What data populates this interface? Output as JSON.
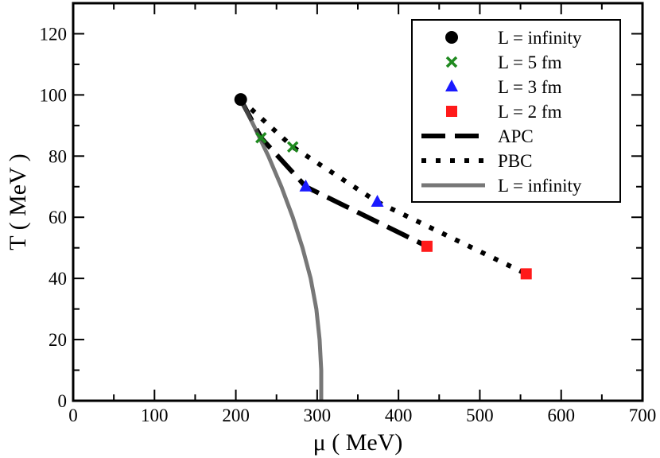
{
  "chart_data": {
    "type": "scatter",
    "title": "",
    "xlabel": "μ ( MeV)",
    "ylabel": "T ( MeV )",
    "xlim": [
      0,
      700
    ],
    "ylim": [
      0,
      130
    ],
    "xticks": [
      0,
      100,
      200,
      300,
      400,
      500,
      600,
      700
    ],
    "yticks": [
      0,
      20,
      40,
      60,
      80,
      100,
      120
    ],
    "xtick_labels": [
      "0",
      "100",
      "200",
      "300",
      "400",
      "500",
      "600",
      "700"
    ],
    "ytick_labels": [
      "0",
      "20",
      "40",
      "60",
      "80",
      "100",
      "120"
    ],
    "legend_position": "top-right",
    "series": [
      {
        "name": "L = infinity",
        "kind": "marker",
        "marker": "circle",
        "color": "#000000",
        "x": [
          206
        ],
        "y": [
          98.5
        ]
      },
      {
        "name": "L = 5 fm",
        "kind": "marker",
        "marker": "x",
        "color": "#1f8a1f",
        "x": [
          231,
          270
        ],
        "y": [
          86,
          83
        ]
      },
      {
        "name": "L = 3 fm",
        "kind": "marker",
        "marker": "triangle",
        "color": "#1a1aff",
        "x": [
          286,
          374
        ],
        "y": [
          70,
          65
        ]
      },
      {
        "name": "L = 2 fm",
        "kind": "marker",
        "marker": "square",
        "color": "#ff1a1a",
        "x": [
          435,
          557
        ],
        "y": [
          50.5,
          41.5
        ]
      },
      {
        "name": "APC",
        "kind": "line",
        "style": "dashed",
        "color": "#000000",
        "x": [
          206,
          231,
          286,
          435
        ],
        "y": [
          98.5,
          86,
          70,
          50.5
        ]
      },
      {
        "name": "PBC",
        "kind": "line",
        "style": "dotted",
        "color": "#000000",
        "x": [
          206,
          270,
          374,
          557
        ],
        "y": [
          98.5,
          83,
          65,
          41.5
        ]
      },
      {
        "name": "L = infinity",
        "kind": "line",
        "style": "solid-gray",
        "color": "#555555",
        "x": [
          206,
          222,
          240,
          256,
          270,
          282,
          292,
          299,
          303,
          305,
          305
        ],
        "y": [
          98.5,
          90,
          80,
          70,
          60,
          50,
          40,
          30,
          20,
          10,
          0
        ]
      }
    ]
  }
}
